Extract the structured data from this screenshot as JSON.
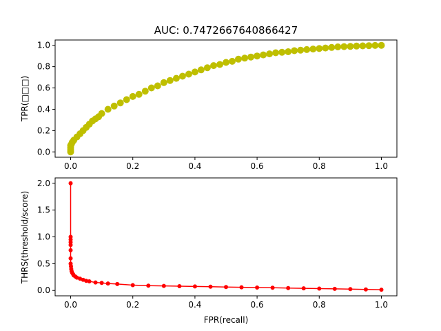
{
  "chart_data": [
    {
      "type": "scatter",
      "title": "AUC: 0.7472667640866427",
      "xlabel": "",
      "ylabel": "TPR(□□□)",
      "xlim": [
        -0.05,
        1.05
      ],
      "ylim": [
        -0.05,
        1.05
      ],
      "xticks": [
        0.0,
        0.2,
        0.4,
        0.6,
        0.8,
        1.0
      ],
      "xtick_labels": [
        "0.0",
        "0.2",
        "0.4",
        "0.6",
        "0.8",
        "1.0"
      ],
      "yticks": [
        0.0,
        0.2,
        0.4,
        0.6,
        0.8,
        1.0
      ],
      "ytick_labels": [
        "0.0",
        "0.2",
        "0.4",
        "0.6",
        "0.8",
        "1.0"
      ],
      "grid": false,
      "color": "#bfbf00",
      "series": [
        {
          "x": [
            0.0,
            0.0,
            0.0,
            0.0,
            0.002,
            0.005,
            0.01,
            0.02,
            0.03,
            0.04,
            0.05,
            0.06,
            0.07,
            0.08,
            0.09,
            0.1,
            0.12,
            0.14,
            0.16,
            0.18,
            0.2,
            0.22,
            0.24,
            0.26,
            0.28,
            0.3,
            0.32,
            0.34,
            0.36,
            0.38,
            0.4,
            0.42,
            0.44,
            0.46,
            0.48,
            0.5,
            0.52,
            0.54,
            0.56,
            0.58,
            0.6,
            0.62,
            0.64,
            0.66,
            0.68,
            0.7,
            0.72,
            0.74,
            0.76,
            0.78,
            0.8,
            0.82,
            0.84,
            0.86,
            0.88,
            0.9,
            0.92,
            0.94,
            0.96,
            0.98,
            1.0
          ],
          "y": [
            0.0,
            0.02,
            0.04,
            0.06,
            0.07,
            0.09,
            0.11,
            0.14,
            0.17,
            0.2,
            0.23,
            0.26,
            0.29,
            0.31,
            0.33,
            0.36,
            0.4,
            0.43,
            0.46,
            0.49,
            0.52,
            0.54,
            0.57,
            0.6,
            0.62,
            0.65,
            0.67,
            0.69,
            0.71,
            0.73,
            0.75,
            0.77,
            0.79,
            0.81,
            0.82,
            0.84,
            0.85,
            0.87,
            0.88,
            0.89,
            0.9,
            0.91,
            0.92,
            0.93,
            0.935,
            0.94,
            0.95,
            0.955,
            0.96,
            0.965,
            0.97,
            0.975,
            0.98,
            0.985,
            0.988,
            0.99,
            0.993,
            0.995,
            0.997,
            0.999,
            1.0
          ]
        }
      ]
    },
    {
      "type": "line",
      "title": "",
      "xlabel": "FPR(recall)",
      "ylabel": "THRS(threshold/score)",
      "xlim": [
        -0.05,
        1.05
      ],
      "ylim": [
        -0.1,
        2.1
      ],
      "xticks": [
        0.0,
        0.2,
        0.4,
        0.6,
        0.8,
        1.0
      ],
      "xtick_labels": [
        "0.0",
        "0.2",
        "0.4",
        "0.6",
        "0.8",
        "1.0"
      ],
      "yticks": [
        0.0,
        0.5,
        1.0,
        1.5,
        2.0
      ],
      "ytick_labels": [
        "0.0",
        "0.5",
        "1.0",
        "1.5",
        "2.0"
      ],
      "grid": false,
      "color": "#ff0000",
      "series": [
        {
          "x": [
            0.0,
            0.0,
            0.0,
            0.0,
            0.0,
            0.0,
            0.0,
            0.0,
            0.001,
            0.002,
            0.003,
            0.005,
            0.008,
            0.01,
            0.015,
            0.02,
            0.03,
            0.04,
            0.05,
            0.06,
            0.08,
            0.1,
            0.12,
            0.15,
            0.2,
            0.25,
            0.3,
            0.35,
            0.4,
            0.45,
            0.5,
            0.55,
            0.6,
            0.65,
            0.7,
            0.75,
            0.8,
            0.85,
            0.9,
            0.95,
            1.0
          ],
          "y": [
            2.0,
            1.0,
            0.95,
            0.9,
            0.85,
            0.75,
            0.6,
            0.5,
            0.45,
            0.4,
            0.36,
            0.33,
            0.3,
            0.28,
            0.26,
            0.24,
            0.22,
            0.2,
            0.18,
            0.17,
            0.15,
            0.14,
            0.13,
            0.12,
            0.1,
            0.09,
            0.085,
            0.08,
            0.075,
            0.07,
            0.065,
            0.06,
            0.055,
            0.05,
            0.045,
            0.04,
            0.035,
            0.03,
            0.025,
            0.02,
            0.015
          ]
        }
      ]
    }
  ]
}
